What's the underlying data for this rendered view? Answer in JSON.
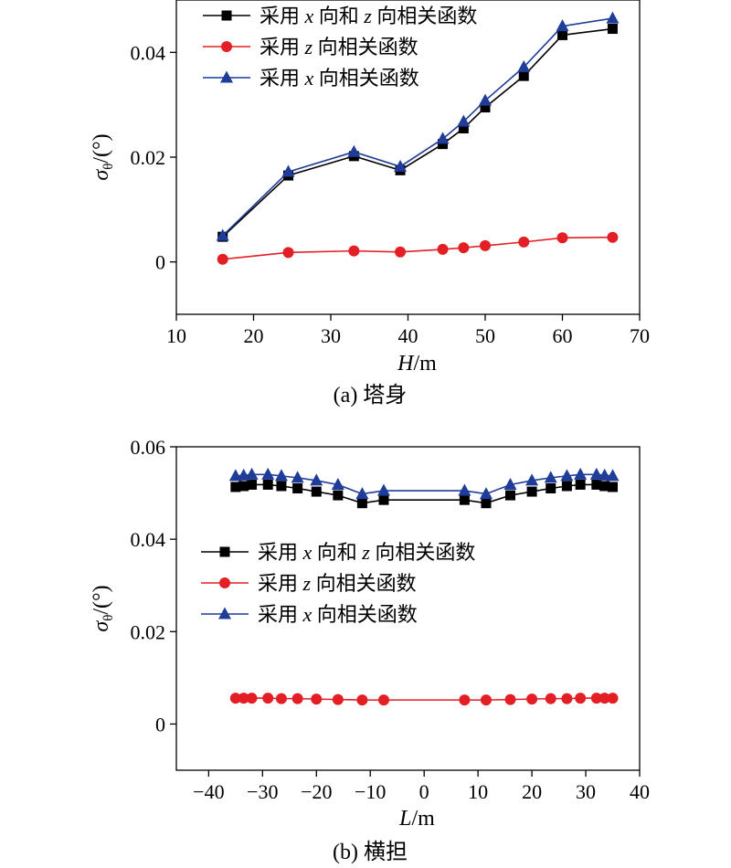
{
  "chart_data": [
    {
      "type": "line",
      "caption": "(a) 塔身",
      "xlabel_italic": "H",
      "xlabel_unit": "/m",
      "ylabel_symbol": "σ",
      "ylabel_sub": "θ",
      "ylabel_unit": "/(°)",
      "xlim": [
        10,
        70
      ],
      "ylim": [
        -0.01,
        0.05
      ],
      "xticks": [
        10,
        20,
        30,
        40,
        50,
        60,
        70
      ],
      "yticks": [
        0,
        0.02,
        0.04
      ],
      "ytick_labels": [
        "0",
        "0.02",
        "0.04"
      ],
      "grid": false,
      "legend_position": "top-left",
      "x": [
        16,
        24.5,
        33,
        39,
        44.5,
        47.2,
        50,
        55,
        60,
        66.5
      ],
      "series": [
        {
          "name": "采用 x 向和 z 向相关函数",
          "color": "#000000",
          "marker": "square",
          "values": [
            0.0048,
            0.0165,
            0.0202,
            0.0175,
            0.0225,
            0.0255,
            0.0295,
            0.0355,
            0.0433,
            0.0445
          ]
        },
        {
          "name": "采用 z 向相关函数",
          "color": "#e31e24",
          "marker": "circle",
          "values": [
            0.0005,
            0.0018,
            0.0021,
            0.0019,
            0.0024,
            0.0027,
            0.0031,
            0.0038,
            0.0046,
            0.0047
          ]
        },
        {
          "name": "采用 x 向相关函数",
          "color": "#1f3c99",
          "marker": "triangle",
          "values": [
            0.005,
            0.0172,
            0.021,
            0.0182,
            0.0235,
            0.0268,
            0.0308,
            0.0372,
            0.045,
            0.0465
          ]
        }
      ]
    },
    {
      "type": "line",
      "caption": "(b) 横担",
      "xlabel_italic": "L",
      "xlabel_unit": "/m",
      "ylabel_symbol": "σ",
      "ylabel_sub": "θ",
      "ylabel_unit": "/(°)",
      "xlim": [
        -46,
        40
      ],
      "ylim": [
        -0.01,
        0.06
      ],
      "xticks": [
        -40,
        -30,
        -20,
        -10,
        0,
        10,
        20,
        30,
        40
      ],
      "yticks": [
        0,
        0.02,
        0.04,
        0.06
      ],
      "ytick_labels": [
        "0",
        "0.02",
        "0.04",
        "0.06"
      ],
      "grid": false,
      "legend_position": "center-left",
      "x": [
        -35,
        -33.5,
        -32,
        -29,
        -26.5,
        -23.5,
        -20,
        -16,
        -11.5,
        -7.5,
        7.5,
        11.5,
        16,
        20,
        23.5,
        26.5,
        29,
        32,
        33.5,
        35
      ],
      "series": [
        {
          "name": "采用 x 向和 z 向相关函数",
          "color": "#000000",
          "marker": "square",
          "values": [
            0.0513,
            0.0515,
            0.0518,
            0.0518,
            0.0515,
            0.051,
            0.0503,
            0.0495,
            0.0478,
            0.0485,
            0.0485,
            0.0478,
            0.0495,
            0.0503,
            0.051,
            0.0515,
            0.0518,
            0.0518,
            0.0515,
            0.0513
          ]
        },
        {
          "name": "采用 z 向相关函数",
          "color": "#e31e24",
          "marker": "circle",
          "values": [
            0.0056,
            0.0056,
            0.0056,
            0.0056,
            0.0055,
            0.0055,
            0.0054,
            0.0053,
            0.0052,
            0.0052,
            0.0052,
            0.0052,
            0.0053,
            0.0054,
            0.0055,
            0.0055,
            0.0056,
            0.0056,
            0.0056,
            0.0056
          ]
        },
        {
          "name": "采用 x 向相关函数",
          "color": "#1f3c99",
          "marker": "triangle",
          "values": [
            0.0537,
            0.0538,
            0.054,
            0.054,
            0.0537,
            0.0533,
            0.0527,
            0.0518,
            0.0498,
            0.0505,
            0.0505,
            0.0498,
            0.0518,
            0.0527,
            0.0533,
            0.0537,
            0.054,
            0.054,
            0.0538,
            0.0537
          ]
        }
      ]
    }
  ]
}
